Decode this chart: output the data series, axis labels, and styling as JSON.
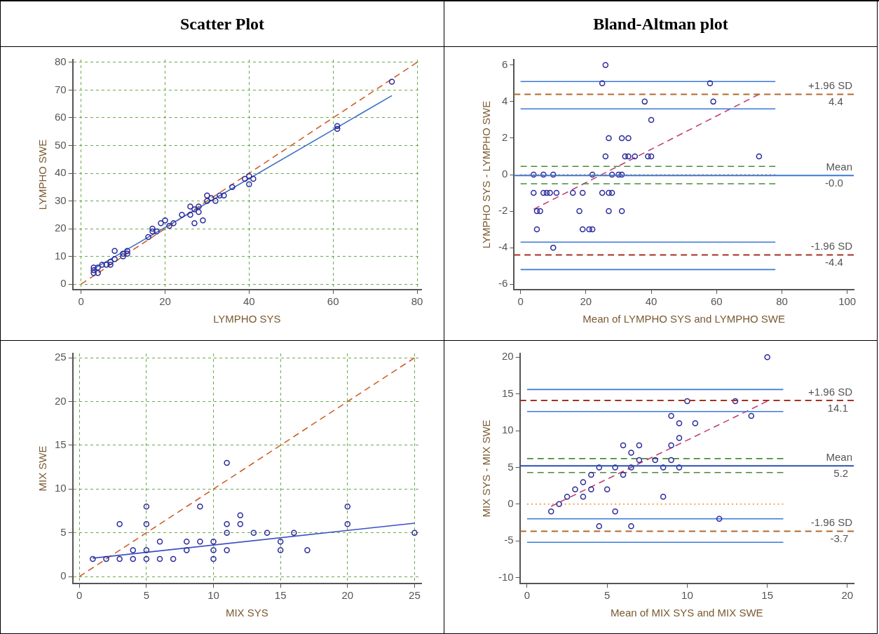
{
  "chart_data": [
    {
      "type": "scatter",
      "title": "Scatter Plot",
      "xlabel": "LYMPHO SYS",
      "ylabel": "LYMPHO SWE",
      "xlim": [
        -2,
        81
      ],
      "ylim": [
        -2,
        81
      ],
      "xticks": [
        0,
        20,
        40,
        60,
        80
      ],
      "yticks": [
        0,
        10,
        20,
        30,
        40,
        50,
        60,
        70,
        80
      ],
      "grid": true,
      "series": [
        {
          "type": "scatter",
          "marker": "circle",
          "color": "#2a2a9a",
          "x": [
            3,
            3,
            3,
            4,
            4,
            5,
            6,
            7,
            7,
            8,
            8,
            10,
            10,
            11,
            11,
            16,
            17,
            17,
            18,
            19,
            20,
            21,
            22,
            24,
            26,
            26,
            27,
            27,
            28,
            28,
            29,
            30,
            30,
            31,
            32,
            33,
            34,
            36,
            39,
            40,
            40,
            41,
            61,
            61,
            74
          ],
          "values": [
            6,
            5,
            4,
            4,
            6,
            7,
            7,
            7,
            8,
            9,
            12,
            10,
            11,
            12,
            11,
            17,
            19,
            20,
            19,
            22,
            23,
            21,
            22,
            25,
            25,
            28,
            27,
            22,
            28,
            26,
            23,
            30,
            32,
            31,
            30,
            32,
            32,
            35,
            38,
            39,
            36,
            38,
            57,
            56,
            73
          ]
        },
        {
          "type": "line",
          "marker": "none",
          "color": "#3a6fc4",
          "line_style": "solid",
          "x": [
            3,
            74
          ],
          "values": [
            5.5,
            68
          ]
        },
        {
          "type": "line",
          "marker": "none",
          "color": "#d0602a",
          "line_style": "dashed",
          "x": [
            0,
            80
          ],
          "values": [
            0,
            80
          ]
        }
      ]
    },
    {
      "type": "scatter",
      "title": "Bland-Altman plot",
      "xlabel": "Mean of LYMPHO SYS and LYMPHO SWE",
      "ylabel": "LYMPHO SYS - LYMPHO SWE",
      "xlim": [
        -2,
        102
      ],
      "ylim": [
        -6.3,
        6.3
      ],
      "xticks": [
        0,
        20,
        40,
        60,
        80,
        100
      ],
      "yticks": [
        -6,
        -4,
        -2,
        0,
        2,
        4,
        6
      ],
      "grid": false,
      "series": [
        {
          "type": "scatter",
          "marker": "circle",
          "color": "#2a2a9a",
          "x": [
            4,
            7,
            10,
            22,
            28,
            30,
            31,
            4,
            7,
            8,
            9,
            11,
            16,
            19,
            25,
            27,
            28,
            5,
            6,
            18,
            27,
            31,
            5,
            19,
            21,
            22,
            10,
            25,
            26,
            58,
            59,
            38,
            40,
            27,
            31,
            33,
            26,
            32,
            33,
            35,
            39,
            40,
            73
          ],
          "values": [
            0,
            0,
            0,
            0,
            0,
            0,
            0,
            -1,
            -1,
            -1,
            -1,
            -1,
            -1,
            -1,
            -1,
            -1,
            -1,
            -2,
            -2,
            -2,
            -2,
            -2,
            -3,
            -3,
            -3,
            -3,
            -4,
            5,
            6,
            5,
            4,
            4,
            3,
            2,
            2,
            2,
            1,
            1,
            1,
            1,
            1,
            1,
            1
          ]
        },
        {
          "type": "line",
          "marker": "none",
          "color": "#3a78d8",
          "line_style": "solid",
          "x": [
            0,
            78
          ],
          "values": [
            5.1,
            5.1
          ]
        },
        {
          "type": "line",
          "marker": "none",
          "color": "#3a78d8",
          "line_style": "solid",
          "x": [
            0,
            78
          ],
          "values": [
            3.6,
            3.6
          ]
        },
        {
          "type": "line",
          "marker": "none",
          "color": "#3a78d8",
          "line_style": "solid",
          "x": [
            0,
            78
          ],
          "values": [
            -3.7,
            -3.7
          ]
        },
        {
          "type": "line",
          "marker": "none",
          "color": "#3a78d8",
          "line_style": "solid",
          "x": [
            0,
            78
          ],
          "values": [
            -5.2,
            -5.2
          ]
        },
        {
          "type": "line",
          "marker": "none",
          "color": "#4a8a3a",
          "line_style": "dashed",
          "x": [
            0,
            78
          ],
          "values": [
            0.45,
            0.45
          ]
        },
        {
          "type": "line",
          "marker": "none",
          "color": "#4a8a3a",
          "line_style": "dashed",
          "x": [
            0,
            78
          ],
          "values": [
            -0.5,
            -0.5
          ]
        },
        {
          "type": "line",
          "marker": "none",
          "color": "#f08a20",
          "line_style": "dotted",
          "x": [
            0,
            78
          ],
          "values": [
            0,
            0
          ]
        },
        {
          "type": "line",
          "marker": "none",
          "color": "#c0407a",
          "line_style": "dashed",
          "x": [
            4,
            73
          ],
          "values": [
            -1.9,
            4.4
          ]
        }
      ],
      "ref_lines": [
        {
          "axis": "y",
          "value": 4.4,
          "label": "+1.96 SD",
          "color": "#b06a30",
          "line_style": "dashed"
        },
        {
          "axis": "y",
          "value": -0.05,
          "label": "Mean",
          "color": "#3a78d8",
          "line_style": "solid"
        },
        {
          "axis": "y",
          "value": -4.4,
          "label": "-1.96 SD",
          "color": "#a83020",
          "line_style": "dashed"
        }
      ],
      "annotations": [
        {
          "text": "4.4",
          "x": 96.5,
          "y": 4.4
        },
        {
          "text": "-0.0",
          "x": 96,
          "y": -0.05
        },
        {
          "text": "-4.4",
          "x": 96,
          "y": -4.4
        }
      ]
    },
    {
      "type": "scatter",
      "xlabel": "MIX SYS",
      "ylabel": "MIX SWE",
      "xlim": [
        -0.5,
        25.5
      ],
      "ylim": [
        -0.8,
        25.5
      ],
      "xticks": [
        0,
        5,
        10,
        15,
        20,
        25
      ],
      "yticks": [
        0,
        5,
        10,
        15,
        20,
        25
      ],
      "grid": true,
      "series": [
        {
          "type": "scatter",
          "marker": "circle",
          "color": "#2a2a9a",
          "x": [
            1,
            2,
            3,
            3,
            4,
            4,
            5,
            5,
            5,
            5,
            6,
            6,
            7,
            8,
            8,
            9,
            9,
            10,
            10,
            10,
            11,
            11,
            11,
            11,
            12,
            12,
            13,
            14,
            15,
            15,
            16,
            17,
            20,
            20,
            25
          ],
          "values": [
            2,
            2,
            2,
            6,
            2,
            3,
            2,
            3,
            6,
            8,
            2,
            4,
            2,
            3,
            4,
            4,
            8,
            2,
            3,
            4,
            3,
            5,
            6,
            13,
            6,
            7,
            5,
            5,
            3,
            4,
            5,
            3,
            6,
            8,
            5
          ]
        },
        {
          "type": "line",
          "marker": "none",
          "color": "#3a4fc4",
          "line_style": "solid",
          "x": [
            1,
            25
          ],
          "values": [
            2.1,
            6.1
          ]
        },
        {
          "type": "line",
          "marker": "none",
          "color": "#d0602a",
          "line_style": "dashed",
          "x": [
            0,
            25
          ],
          "values": [
            0,
            25
          ]
        }
      ]
    },
    {
      "type": "scatter",
      "xlabel": "Mean of MIX SYS and MIX SWE",
      "ylabel": "MIX SYS - MIX SWE",
      "xlim": [
        -0.45,
        20.4
      ],
      "ylim": [
        -10.8,
        20.5
      ],
      "xticks": [
        0,
        5,
        10,
        15,
        20
      ],
      "yticks": [
        -10,
        -5,
        0,
        5,
        10,
        15,
        20
      ],
      "grid": false,
      "series": [
        {
          "type": "scatter",
          "marker": "circle",
          "color": "#2a2a9a",
          "x": [
            1.5,
            2,
            2.5,
            3,
            3.5,
            3.5,
            4,
            4,
            4.5,
            4.5,
            5,
            5.5,
            5.5,
            6,
            6,
            6.5,
            6.5,
            6.5,
            7,
            7,
            8,
            8.5,
            8.5,
            9,
            9,
            9,
            9.5,
            9.5,
            9.5,
            10,
            10.5,
            12,
            13,
            14,
            15
          ],
          "values": [
            -1,
            0,
            1,
            2,
            3,
            1,
            4,
            2,
            5,
            -3,
            2,
            5,
            -1,
            8,
            4,
            7,
            5,
            -3,
            8,
            6,
            6,
            5,
            1,
            12,
            8,
            6,
            11,
            9,
            5,
            14,
            11,
            -2,
            14,
            12,
            20
          ]
        },
        {
          "type": "line",
          "marker": "none",
          "color": "#3a78d8",
          "line_style": "solid",
          "x": [
            0,
            16
          ],
          "values": [
            15.6,
            15.6
          ]
        },
        {
          "type": "line",
          "marker": "none",
          "color": "#3a78d8",
          "line_style": "solid",
          "x": [
            0,
            16
          ],
          "values": [
            12.6,
            12.6
          ]
        },
        {
          "type": "line",
          "marker": "none",
          "color": "#3a78d8",
          "line_style": "solid",
          "x": [
            0,
            16
          ],
          "values": [
            -2,
            -2
          ]
        },
        {
          "type": "line",
          "marker": "none",
          "color": "#3a78d8",
          "line_style": "solid",
          "x": [
            0,
            16
          ],
          "values": [
            -5.2,
            -5.2
          ]
        },
        {
          "type": "line",
          "marker": "none",
          "color": "#4a8a3a",
          "line_style": "dashed",
          "x": [
            0,
            16
          ],
          "values": [
            6.2,
            6.2
          ]
        },
        {
          "type": "line",
          "marker": "none",
          "color": "#4a8a3a",
          "line_style": "dashed",
          "x": [
            0,
            16
          ],
          "values": [
            4.3,
            4.3
          ]
        },
        {
          "type": "line",
          "marker": "none",
          "color": "#f08a20",
          "line_style": "dotted",
          "x": [
            0,
            16
          ],
          "values": [
            0,
            0
          ]
        },
        {
          "type": "line",
          "marker": "none",
          "color": "#c0407a",
          "line_style": "dashed",
          "x": [
            1.5,
            15
          ],
          "values": [
            -0.3,
            14
          ]
        }
      ],
      "ref_lines": [
        {
          "axis": "y",
          "value": 14.1,
          "label": "+1.96 SD",
          "color": "#a83020",
          "line_style": "dashed"
        },
        {
          "axis": "y",
          "value": 5.2,
          "label": "Mean",
          "color": "#2a4fb0",
          "line_style": "solid"
        },
        {
          "axis": "y",
          "value": -3.7,
          "label": "-1.96 SD",
          "color": "#b06a30",
          "line_style": "dashed"
        }
      ],
      "annotations": [
        {
          "text": "14.1",
          "x": 19.4,
          "y": 14.1
        },
        {
          "text": "5.2",
          "x": 19.6,
          "y": 5.2
        },
        {
          "text": "-3.7",
          "x": 19.5,
          "y": -3.7
        }
      ]
    }
  ]
}
